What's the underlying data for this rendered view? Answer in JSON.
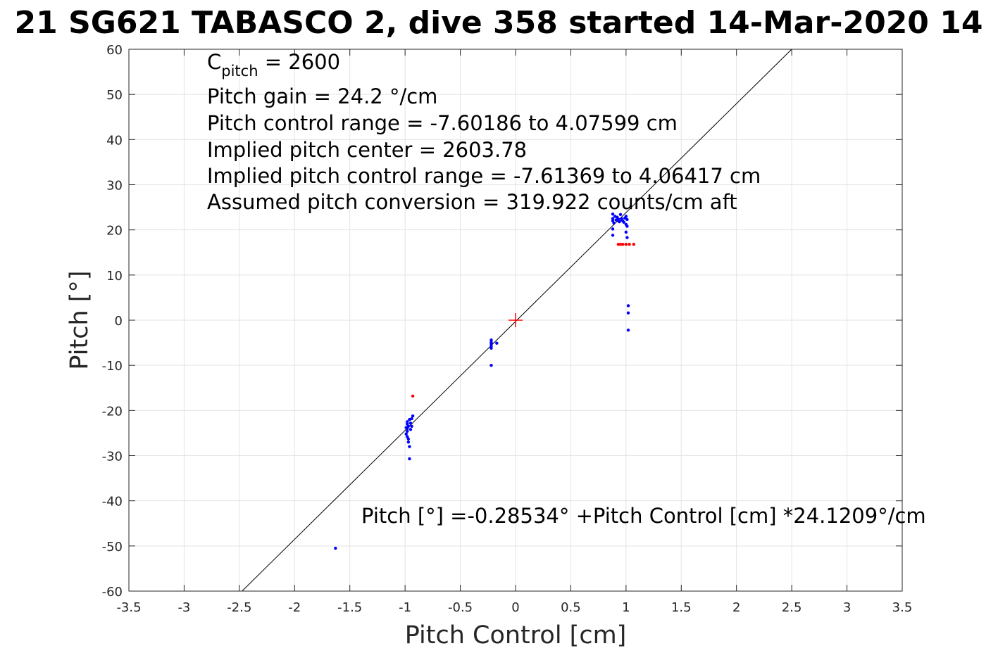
{
  "chart_data": {
    "type": "scatter",
    "title": "21 SG621 TABASCO 2, dive 358 started 14-Mar-2020 14",
    "xlabel": "Pitch Control [cm]",
    "ylabel": "Pitch [°]",
    "xlim": [
      -3.5,
      3.5
    ],
    "ylim": [
      -60,
      60
    ],
    "x_ticks": [
      "-3.5",
      "-3",
      "-2.5",
      "-2",
      "-1.5",
      "-1",
      "-0.5",
      "0",
      "0.5",
      "1",
      "1.5",
      "2",
      "2.5",
      "3",
      "3.5"
    ],
    "x_tick_values": [
      -3.5,
      -3,
      -2.5,
      -2,
      -1.5,
      -1,
      -0.5,
      0,
      0.5,
      1,
      1.5,
      2,
      2.5,
      3,
      3.5
    ],
    "y_ticks": [
      "60",
      "50",
      "40",
      "30",
      "20",
      "10",
      "0",
      "-10",
      "-20",
      "-30",
      "-40",
      "-50",
      "-60"
    ],
    "y_tick_values": [
      60,
      50,
      40,
      30,
      20,
      10,
      0,
      -10,
      -20,
      -30,
      -40,
      -50,
      -60
    ],
    "grid": true,
    "annotations": {
      "c_pitch_main": "C",
      "c_pitch_sub": "pitch",
      "c_pitch_value": " = 2600",
      "pitch_gain": "Pitch gain = 24.2 °/cm",
      "control_range": "Pitch control range = -7.60186 to 4.07599 cm",
      "implied_center": "Implied pitch center = 2603.78",
      "implied_range": "Implied pitch control range = -7.61369 to 4.06417 cm",
      "conversion": "Assumed pitch conversion = 319.922 counts/cm aft",
      "fit_equation": "Pitch [°] =-0.28534° +Pitch Control [cm] *24.1209°/cm"
    },
    "fit_line": {
      "intercept": -0.28534,
      "slope": 24.1209,
      "color": "#000000"
    },
    "center_marker": {
      "x": 0,
      "y": 0,
      "color": "#ff0000"
    },
    "series": [
      {
        "color": "#0000ff",
        "points": [
          [
            0.88,
            23.5
          ],
          [
            0.88,
            22.5
          ],
          [
            0.88,
            22.0
          ],
          [
            0.89,
            21.5
          ],
          [
            0.9,
            23.0
          ],
          [
            0.91,
            22.2
          ],
          [
            0.92,
            22.8
          ],
          [
            0.93,
            22.0
          ],
          [
            0.94,
            21.8
          ],
          [
            0.95,
            23.4
          ],
          [
            0.96,
            22.5
          ],
          [
            0.97,
            22.0
          ],
          [
            0.98,
            21.7
          ],
          [
            0.99,
            22.6
          ],
          [
            1.0,
            23.0
          ],
          [
            1.0,
            21.2
          ],
          [
            1.01,
            22.3
          ],
          [
            1.01,
            20.8
          ],
          [
            1.0,
            19.5
          ],
          [
            1.01,
            18.3
          ],
          [
            0.88,
            20.2
          ],
          [
            0.88,
            18.8
          ],
          [
            0.96,
            22.2
          ],
          [
            0.93,
            22.4
          ],
          [
            1.02,
            3.2
          ],
          [
            1.02,
            1.6
          ],
          [
            1.02,
            -2.2
          ],
          [
            -0.22,
            -4.4
          ],
          [
            -0.22,
            -4.9
          ],
          [
            -0.22,
            -5.3
          ],
          [
            -0.22,
            -5.8
          ],
          [
            -0.22,
            -6.2
          ],
          [
            -0.22,
            -5.1
          ],
          [
            -0.17,
            -5.1
          ],
          [
            -0.22,
            -10.0
          ],
          [
            -0.98,
            -22.5
          ],
          [
            -0.98,
            -23.0
          ],
          [
            -0.97,
            -23.5
          ],
          [
            -0.98,
            -24.0
          ],
          [
            -0.98,
            -24.6
          ],
          [
            -0.99,
            -25.2
          ],
          [
            -0.98,
            -25.8
          ],
          [
            -0.97,
            -26.3
          ],
          [
            -0.97,
            -27.0
          ],
          [
            -0.96,
            -28.0
          ],
          [
            -0.95,
            -22.8
          ],
          [
            -0.94,
            -23.5
          ],
          [
            -0.95,
            -24.2
          ],
          [
            -0.94,
            -21.8
          ],
          [
            -0.93,
            -21.2
          ],
          [
            -0.96,
            -22.0
          ],
          [
            -0.99,
            -23.8
          ],
          [
            -0.96,
            -30.7
          ],
          [
            -1.63,
            -50.5
          ]
        ]
      },
      {
        "color": "#ff0000",
        "points": [
          [
            0.93,
            16.8
          ],
          [
            0.95,
            16.8
          ],
          [
            0.97,
            16.8
          ],
          [
            1.0,
            16.8
          ],
          [
            1.03,
            16.8
          ],
          [
            1.07,
            16.8
          ],
          [
            -0.93,
            -16.8
          ]
        ]
      }
    ]
  }
}
